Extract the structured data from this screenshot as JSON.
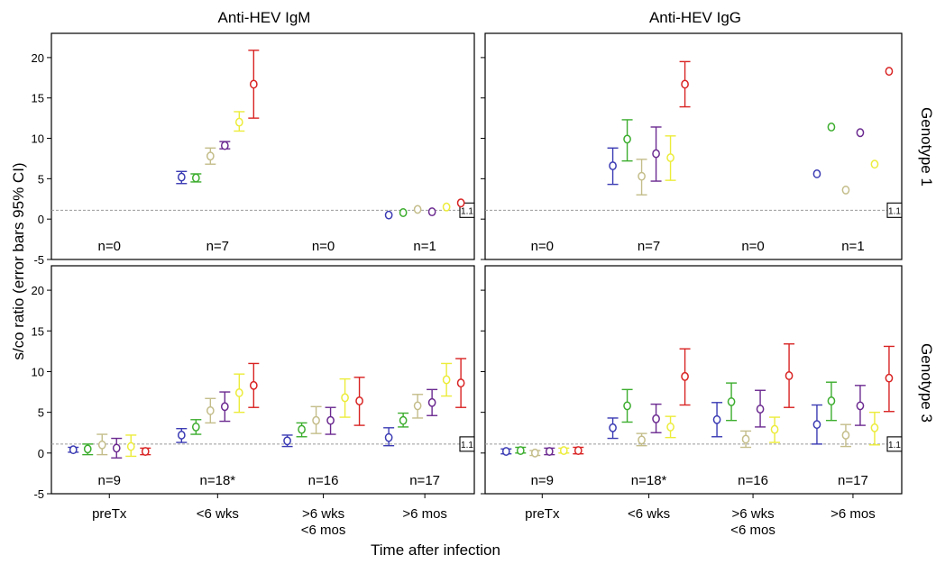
{
  "figure": {
    "column_titles": [
      "Anti-HEV IgM",
      "Anti-HEV IgG"
    ],
    "row_titles": [
      "Genotype 1",
      "Genotype 3"
    ],
    "ylabel": "s/co ratio (error bars 95% CI)",
    "xlabel": "Time after infection",
    "ref_label": "1.1",
    "x_categories": [
      "preTx",
      "<6 wks",
      ">6 wks\n<6 mos",
      ">6 mos"
    ],
    "y_ticks": [
      -5,
      0,
      5,
      10,
      15,
      20
    ],
    "n_labels": {
      "genotype1": [
        "n=0",
        "n=7",
        "n=0",
        "n=1"
      ],
      "genotype3": [
        "n=9",
        "n=18*",
        "n=16",
        "n=17"
      ]
    }
  },
  "colors": {
    "series": [
      "#3b3bb4",
      "#3cad2e",
      "#c4bd8a",
      "#6b2a90",
      "#ecec3a",
      "#d92323"
    ],
    "refline": "#9a9a9a",
    "frame": "#000000"
  },
  "chart_data": [
    {
      "type": "scatter",
      "title": "Anti-HEV IgM",
      "row": "Genotype 1",
      "categories": [
        "preTx",
        "<6 wks",
        ">6 wks <6 mos",
        ">6 mos"
      ],
      "ylim": [
        -5,
        23
      ],
      "reference_line": 1.1,
      "series": [
        {
          "values": [
            null,
            5.2,
            null,
            0.5
          ],
          "lo": [
            null,
            4.4,
            null,
            null
          ],
          "hi": [
            null,
            5.9,
            null,
            null
          ]
        },
        {
          "values": [
            null,
            5.1,
            null,
            0.8
          ],
          "lo": [
            null,
            4.6,
            null,
            null
          ],
          "hi": [
            null,
            5.6,
            null,
            null
          ]
        },
        {
          "values": [
            null,
            7.8,
            null,
            1.2
          ],
          "lo": [
            null,
            6.8,
            null,
            null
          ],
          "hi": [
            null,
            8.8,
            null,
            null
          ]
        },
        {
          "values": [
            null,
            9.1,
            null,
            0.9
          ],
          "lo": [
            null,
            8.7,
            null,
            null
          ],
          "hi": [
            null,
            9.6,
            null,
            null
          ]
        },
        {
          "values": [
            null,
            12.0,
            null,
            1.5
          ],
          "lo": [
            null,
            10.9,
            null,
            null
          ],
          "hi": [
            null,
            13.3,
            null,
            null
          ]
        },
        {
          "values": [
            null,
            16.7,
            null,
            2.0
          ],
          "lo": [
            null,
            12.5,
            null,
            null
          ],
          "hi": [
            null,
            20.9,
            null,
            null
          ]
        }
      ]
    },
    {
      "type": "scatter",
      "title": "Anti-HEV IgG",
      "row": "Genotype 1",
      "categories": [
        "preTx",
        "<6 wks",
        ">6 wks <6 mos",
        ">6 mos"
      ],
      "ylim": [
        -5,
        23
      ],
      "reference_line": 1.1,
      "series": [
        {
          "values": [
            null,
            6.6,
            null,
            5.6
          ],
          "lo": [
            null,
            4.3,
            null,
            null
          ],
          "hi": [
            null,
            8.8,
            null,
            null
          ]
        },
        {
          "values": [
            null,
            9.9,
            null,
            11.4
          ],
          "lo": [
            null,
            7.2,
            null,
            null
          ],
          "hi": [
            null,
            12.3,
            null,
            null
          ]
        },
        {
          "values": [
            null,
            5.3,
            null,
            3.6
          ],
          "lo": [
            null,
            3.0,
            null,
            null
          ],
          "hi": [
            null,
            7.4,
            null,
            null
          ]
        },
        {
          "values": [
            null,
            8.1,
            null,
            10.7
          ],
          "lo": [
            null,
            4.7,
            null,
            null
          ],
          "hi": [
            null,
            11.4,
            null,
            null
          ]
        },
        {
          "values": [
            null,
            7.6,
            null,
            6.8
          ],
          "lo": [
            null,
            4.8,
            null,
            null
          ],
          "hi": [
            null,
            10.3,
            null,
            null
          ]
        },
        {
          "values": [
            null,
            16.7,
            null,
            18.3
          ],
          "lo": [
            null,
            13.9,
            null,
            null
          ],
          "hi": [
            null,
            19.5,
            null,
            null
          ]
        }
      ]
    },
    {
      "type": "scatter",
      "title": "Anti-HEV IgM",
      "row": "Genotype 3",
      "categories": [
        "preTx",
        "<6 wks",
        ">6 wks <6 mos",
        ">6 mos"
      ],
      "ylim": [
        -5,
        23
      ],
      "reference_line": 1.1,
      "series": [
        {
          "values": [
            0.4,
            2.2,
            1.5,
            1.9
          ],
          "lo": [
            0.1,
            1.3,
            0.8,
            0.9
          ],
          "hi": [
            0.7,
            3.0,
            2.2,
            3.1
          ]
        },
        {
          "values": [
            0.5,
            3.2,
            2.9,
            4.0
          ],
          "lo": [
            -0.2,
            2.3,
            2.0,
            3.2
          ],
          "hi": [
            1.1,
            4.1,
            3.7,
            4.9
          ]
        },
        {
          "values": [
            1.0,
            5.2,
            4.0,
            5.8
          ],
          "lo": [
            -0.2,
            3.7,
            2.4,
            4.3
          ],
          "hi": [
            2.3,
            6.7,
            5.7,
            7.2
          ]
        },
        {
          "values": [
            0.6,
            5.7,
            4.0,
            6.2
          ],
          "lo": [
            -0.6,
            3.9,
            2.3,
            4.6
          ],
          "hi": [
            1.8,
            7.5,
            5.6,
            7.8
          ]
        },
        {
          "values": [
            0.8,
            7.4,
            6.8,
            9.0
          ],
          "lo": [
            -0.4,
            5.0,
            4.4,
            7.0
          ],
          "hi": [
            2.2,
            9.7,
            9.1,
            11.0
          ]
        },
        {
          "values": [
            0.2,
            8.3,
            6.4,
            8.6
          ],
          "lo": [
            -0.2,
            5.6,
            3.4,
            5.6
          ],
          "hi": [
            0.6,
            11.0,
            9.3,
            11.6
          ]
        }
      ]
    },
    {
      "type": "scatter",
      "title": "Anti-HEV IgG",
      "row": "Genotype 3",
      "categories": [
        "preTx",
        "<6 wks",
        ">6 wks <6 mos",
        ">6 mos"
      ],
      "ylim": [
        -5,
        23
      ],
      "reference_line": 1.1,
      "series": [
        {
          "values": [
            0.2,
            3.1,
            4.1,
            3.5
          ],
          "lo": [
            -0.1,
            1.8,
            2.0,
            1.1
          ],
          "hi": [
            0.5,
            4.3,
            6.2,
            5.9
          ]
        },
        {
          "values": [
            0.3,
            5.8,
            6.3,
            6.4
          ],
          "lo": [
            0.0,
            3.8,
            4.0,
            4.0
          ],
          "hi": [
            0.7,
            7.8,
            8.6,
            8.7
          ]
        },
        {
          "values": [
            0.0,
            1.6,
            1.7,
            2.2
          ],
          "lo": [
            -0.3,
            0.9,
            0.7,
            0.8
          ],
          "hi": [
            0.3,
            2.4,
            2.7,
            3.5
          ]
        },
        {
          "values": [
            0.2,
            4.2,
            5.4,
            5.8
          ],
          "lo": [
            -0.2,
            2.5,
            3.2,
            3.4
          ],
          "hi": [
            0.6,
            6.0,
            7.7,
            8.3
          ]
        },
        {
          "values": [
            0.3,
            3.2,
            2.9,
            3.1
          ],
          "lo": [
            0.0,
            1.9,
            1.3,
            1.0
          ],
          "hi": [
            0.6,
            4.5,
            4.4,
            5.0
          ]
        },
        {
          "values": [
            0.3,
            9.4,
            9.5,
            9.2
          ],
          "lo": [
            -0.1,
            5.9,
            5.6,
            5.1
          ],
          "hi": [
            0.7,
            12.8,
            13.4,
            13.1
          ]
        }
      ]
    }
  ]
}
